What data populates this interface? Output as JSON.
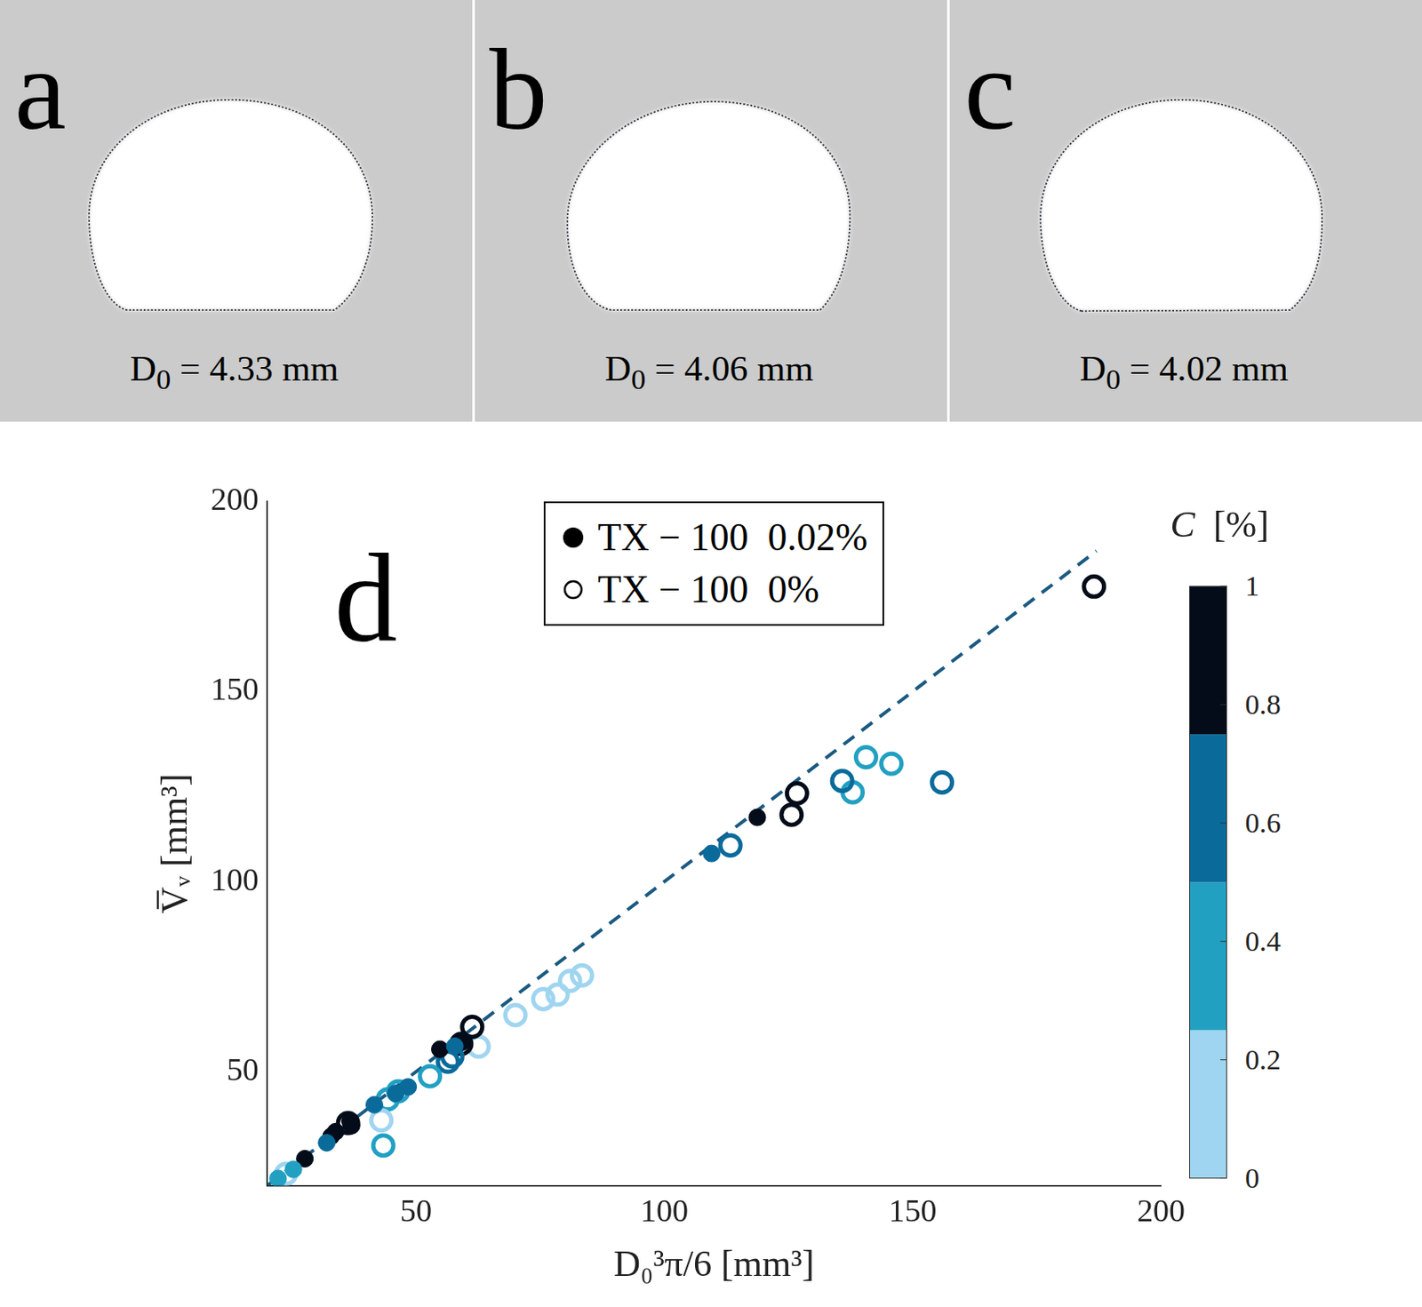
{
  "panels": [
    {
      "letter": "a",
      "symbol": "D",
      "subscript": "0",
      "relation": "=",
      "value": 4.33,
      "unit": "mm"
    },
    {
      "letter": "b",
      "symbol": "D",
      "subscript": "0",
      "relation": "=",
      "value": 4.06,
      "unit": "mm"
    },
    {
      "letter": "c",
      "symbol": "D",
      "subscript": "0",
      "relation": "=",
      "value": 4.02,
      "unit": "mm"
    }
  ],
  "chart_data": {
    "type": "scatter",
    "panel_letter": "d",
    "x_label": "D₀³π/6 [mm³]",
    "y_label": "V̅ᵥ [mm³]",
    "xlim": [
      20,
      200
    ],
    "ylim": [
      20,
      200
    ],
    "xticks": [
      50,
      100,
      150,
      200
    ],
    "yticks": [
      50,
      100,
      150,
      200
    ],
    "grid": false,
    "legend": "upper center",
    "series": [
      {
        "name": "TX − 100  0.02%",
        "marker": "filled",
        "x": [
          118.7,
          109.5,
          54.8,
          59.3,
          57.8,
          48.4,
          45.9,
          41.6,
          36.7,
          37.0,
          33.8,
          32.9,
          32.0,
          27.6,
          25.3,
          22.2
        ],
        "y": [
          116.9,
          107.4,
          55.9,
          57.8,
          56.7,
          46.0,
          44.3,
          41.3,
          37.0,
          35.8,
          34.2,
          33.0,
          31.3,
          27.1,
          24.3,
          21.9
        ],
        "c": [
          1,
          0.6,
          1,
          1,
          0.6,
          0.6,
          0.6,
          0.6,
          1,
          1,
          1,
          1,
          0.6,
          1,
          0.4,
          0.4
        ]
      },
      {
        "name": "TX − 100  0%",
        "marker": "open",
        "x": [
          186.5,
          155.9,
          145.7,
          140.6,
          137.9,
          135.8,
          126.7,
          125.6,
          113.3,
          83.4,
          81.0,
          78.5,
          75.6,
          70.0,
          62.6,
          61.3,
          59.1,
          57.3,
          56.4,
          52.8,
          46.4,
          44.3,
          43.4,
          43.0,
          36.3,
          23.8
        ],
        "y": [
          177.6,
          126.1,
          131.0,
          132.7,
          123.5,
          126.5,
          123.2,
          117.6,
          109.5,
          75.3,
          73.9,
          70.3,
          69.1,
          64.9,
          56.6,
          61.8,
          57.3,
          54.0,
          52.6,
          48.8,
          44.8,
          42.7,
          30.6,
          37.2,
          36.5,
          23.1
        ],
        "c": [
          1,
          0.6,
          0.4,
          0.4,
          0.4,
          0.6,
          1,
          1,
          0.6,
          0.1,
          0.1,
          0.1,
          0.1,
          0.1,
          0.1,
          1,
          1,
          0.6,
          0.6,
          0.4,
          0.4,
          0.4,
          0.4,
          0.1,
          1,
          0.1
        ]
      }
    ],
    "fit_line": {
      "x": [
        20,
        187
      ],
      "y": [
        20,
        187
      ],
      "color": "#1b5a80",
      "line_style": "dashed"
    },
    "colorbar": {
      "title_symbol": "C",
      "title_unit": "[%]",
      "range": [
        0,
        1
      ],
      "ticks": [
        0,
        0.2,
        0.4,
        0.6,
        0.8,
        1
      ],
      "bounds": [
        0,
        0.25,
        0.5,
        0.75,
        1
      ],
      "colors": [
        "#9fd5f0",
        "#22a0c2",
        "#0a6b9b",
        "#030c18"
      ]
    }
  }
}
